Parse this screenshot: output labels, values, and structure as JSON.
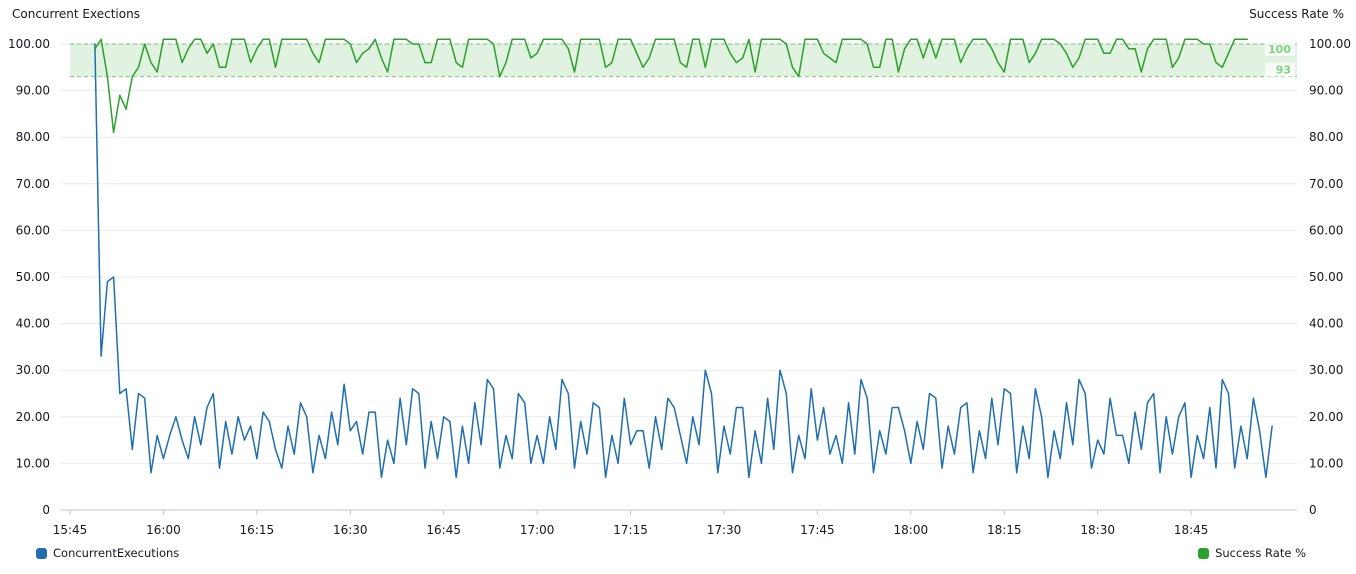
{
  "chart_data": {
    "type": "line",
    "title_left": "Concurrent Exections",
    "title_right": "Success Rate %",
    "xlabel": "",
    "x_ticks": [
      "15:45",
      "16:00",
      "16:15",
      "16:30",
      "16:45",
      "17:00",
      "17:15",
      "17:30",
      "17:45",
      "18:00",
      "18:15",
      "18:30",
      "18:45"
    ],
    "x_range_minutes": [
      0,
      197
    ],
    "y_left": {
      "lim": [
        0,
        100
      ],
      "ticks": [
        "0",
        "10.00",
        "20.00",
        "30.00",
        "40.00",
        "50.00",
        "60.00",
        "70.00",
        "80.00",
        "90.00",
        "100.00"
      ]
    },
    "y_right": {
      "lim": [
        0,
        100
      ],
      "ticks": [
        "0",
        "10.00",
        "20.00",
        "30.00",
        "40.00",
        "50.00",
        "60.00",
        "70.00",
        "80.00",
        "90.00",
        "100.00"
      ]
    },
    "band": {
      "min": 93,
      "max": 100,
      "label_max": "100",
      "label_min": "93",
      "color": "#2ca02c"
    },
    "grid": true,
    "legend_position": "bottom",
    "series": [
      {
        "name": "ConcurrentExecutions",
        "axis": "left",
        "color": "#1f6fb0",
        "start_minute": 4,
        "step_minutes": 1,
        "values": [
          100,
          33,
          49,
          50,
          25,
          26,
          13,
          25,
          24,
          8,
          16,
          11,
          16,
          20,
          15,
          11,
          20,
          14,
          22,
          25,
          9,
          19,
          12,
          20,
          15,
          18,
          11,
          21,
          19,
          13,
          9,
          18,
          12,
          23,
          20,
          8,
          16,
          11,
          21,
          14,
          27,
          17,
          19,
          12,
          21,
          21,
          7,
          15,
          10,
          24,
          14,
          26,
          25,
          9,
          19,
          11,
          20,
          19,
          7,
          18,
          10,
          23,
          14,
          28,
          26,
          9,
          16,
          11,
          25,
          23,
          10,
          16,
          10,
          20,
          13,
          28,
          25,
          9,
          19,
          12,
          23,
          22,
          7,
          16,
          10,
          24,
          14,
          17,
          17,
          9,
          20,
          13,
          24,
          22,
          16,
          10,
          20,
          14,
          30,
          25,
          8,
          18,
          12,
          22,
          22,
          7,
          17,
          10,
          24,
          13,
          30,
          25,
          8,
          16,
          11,
          26,
          15,
          22,
          12,
          16,
          10,
          23,
          12,
          28,
          24,
          8,
          17,
          12,
          22,
          22,
          17,
          10,
          19,
          13,
          25,
          24,
          9,
          18,
          12,
          22,
          23,
          8,
          17,
          11,
          24,
          14,
          26,
          25,
          8,
          18,
          11,
          26,
          20,
          7,
          17,
          11,
          23,
          14,
          28,
          25,
          9,
          15,
          12,
          24,
          16,
          16,
          10,
          21,
          13,
          23,
          25,
          8,
          20,
          12,
          20,
          23,
          7,
          16,
          11,
          22,
          9,
          28,
          25,
          9,
          18,
          11,
          24,
          17,
          7,
          18
        ]
      },
      {
        "name": "Success Rate %",
        "axis": "right",
        "color": "#2ca02c",
        "start_minute": 4,
        "step_minutes": 1,
        "values": [
          99,
          101,
          93,
          81,
          89,
          86,
          93,
          95,
          100,
          96,
          94,
          101,
          101,
          101,
          96,
          99,
          101,
          101,
          98,
          100,
          95,
          95,
          101,
          101,
          101,
          96,
          99,
          101,
          101,
          95,
          101,
          101,
          101,
          101,
          101,
          98,
          96,
          101,
          101,
          101,
          101,
          100,
          96,
          98,
          99,
          101,
          97,
          94,
          101,
          101,
          101,
          100,
          100,
          96,
          96,
          101,
          101,
          101,
          96,
          95,
          101,
          101,
          101,
          101,
          100,
          93,
          96,
          101,
          101,
          101,
          97,
          98,
          101,
          101,
          101,
          101,
          99,
          94,
          101,
          101,
          101,
          101,
          95,
          96,
          101,
          101,
          101,
          98,
          95,
          97,
          101,
          101,
          101,
          101,
          96,
          95,
          101,
          101,
          95,
          101,
          101,
          101,
          98,
          96,
          97,
          101,
          94,
          101,
          101,
          101,
          101,
          100,
          95,
          93,
          101,
          101,
          101,
          98,
          97,
          96,
          101,
          101,
          101,
          101,
          100,
          95,
          95,
          101,
          101,
          94,
          99,
          101,
          101,
          97,
          101,
          97,
          101,
          101,
          101,
          96,
          99,
          101,
          101,
          101,
          99,
          96,
          94,
          101,
          101,
          101,
          96,
          98,
          101,
          101,
          101,
          100,
          98,
          95,
          97,
          101,
          101,
          101,
          98,
          98,
          101,
          101,
          99,
          99,
          94,
          99,
          101,
          101,
          101,
          95,
          97,
          101,
          101,
          101,
          100,
          100,
          96,
          95,
          98,
          101,
          101,
          101
        ]
      }
    ]
  }
}
